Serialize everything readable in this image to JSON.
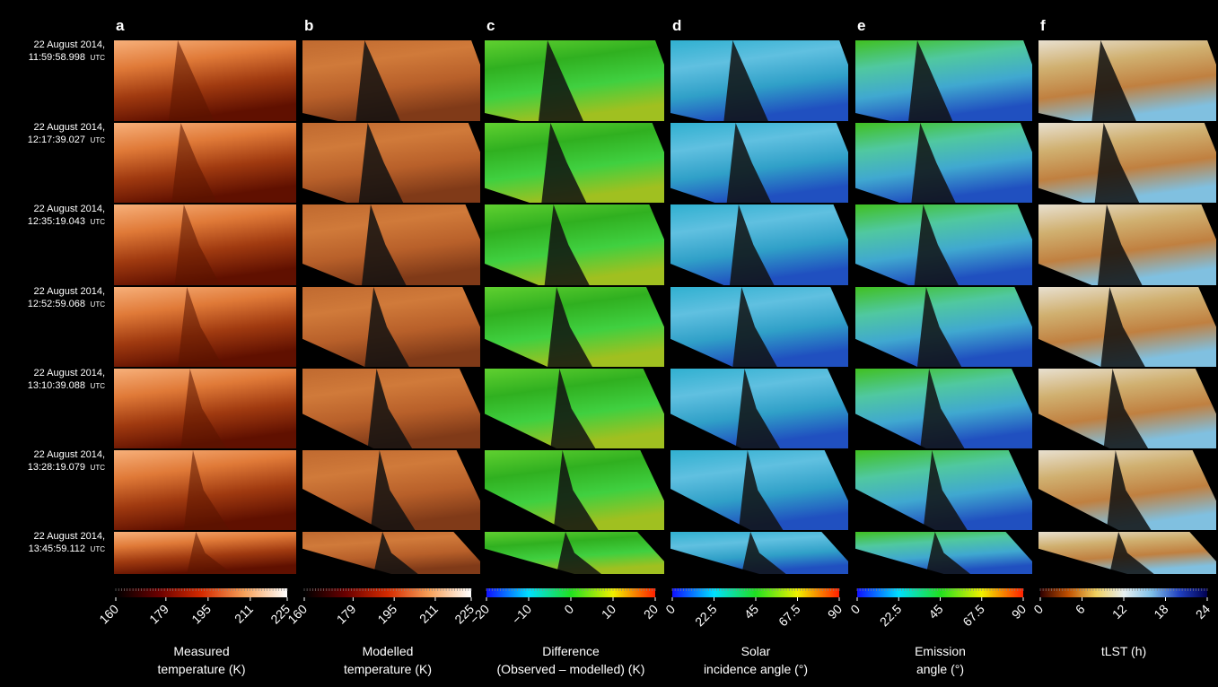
{
  "timestamps": [
    {
      "date": "22 August 2014,",
      "time": "11:59:58.998",
      "zone": "UTC"
    },
    {
      "date": "22 August 2014,",
      "time": "12:17:39.027",
      "zone": "UTC"
    },
    {
      "date": "22 August 2014,",
      "time": "12:35:19.043",
      "zone": "UTC"
    },
    {
      "date": "22 August 2014,",
      "time": "12:52:59.068",
      "zone": "UTC"
    },
    {
      "date": "22 August 2014,",
      "time": "13:10:39.088",
      "zone": "UTC"
    },
    {
      "date": "22 August 2014,",
      "time": "13:28:19.079",
      "zone": "UTC"
    },
    {
      "date": "22 August 2014,",
      "time": "13:45:59.112",
      "zone": "UTC"
    }
  ],
  "panels": [
    {
      "letter": "a",
      "colorbar": {
        "title_lines": [
          "Measured",
          "temperature (K)"
        ],
        "lim": [
          160,
          225
        ],
        "ticks": [
          160,
          179,
          195,
          211,
          225
        ],
        "colors": [
          "#000000",
          "#6a0000",
          "#d42a00",
          "#f7a15a",
          "#ffffff"
        ]
      }
    },
    {
      "letter": "b",
      "colorbar": {
        "title_lines": [
          "Modelled",
          "temperature (K)"
        ],
        "lim": [
          160,
          225
        ],
        "ticks": [
          160,
          179,
          195,
          211,
          225
        ],
        "colors": [
          "#000000",
          "#6a0000",
          "#d42a00",
          "#f7a15a",
          "#ffffff"
        ]
      }
    },
    {
      "letter": "c",
      "colorbar": {
        "title_lines": [
          "Difference",
          "(Observed – modelled) (K)"
        ],
        "lim": [
          -20,
          20
        ],
        "ticks": [
          {
            "value": -20,
            "label": "−20"
          },
          {
            "value": -10,
            "label": "−10"
          },
          0,
          10,
          20
        ],
        "colors": [
          "#1010ff",
          "#00e0ff",
          "#20e020",
          "#f0f000",
          "#ff2000"
        ]
      }
    },
    {
      "letter": "d",
      "colorbar": {
        "title_lines": [
          "Solar",
          "incidence angle (°)"
        ],
        "lim": [
          0,
          90
        ],
        "ticks": [
          0,
          22.5,
          45,
          67.5,
          90
        ],
        "colors": [
          "#1010ff",
          "#00e0ff",
          "#20e020",
          "#f0f000",
          "#ff2000"
        ]
      }
    },
    {
      "letter": "e",
      "colorbar": {
        "title_lines": [
          "Emission",
          "angle (°)"
        ],
        "lim": [
          0,
          90
        ],
        "ticks": [
          0,
          22.5,
          45,
          67.5,
          90
        ],
        "colors": [
          "#1010ff",
          "#00e0ff",
          "#20e020",
          "#f0f000",
          "#ff2000"
        ]
      }
    },
    {
      "letter": "f",
      "colorbar": {
        "title_lines": [
          "tLST (h)"
        ],
        "lim": [
          0,
          24
        ],
        "ticks": [
          0,
          6,
          12,
          18,
          24
        ],
        "colors": [
          "#300000",
          "#c05000",
          "#f0d060",
          "#e8f0f0",
          "#80c0e8",
          "#2040c0",
          "#000050"
        ]
      }
    }
  ]
}
